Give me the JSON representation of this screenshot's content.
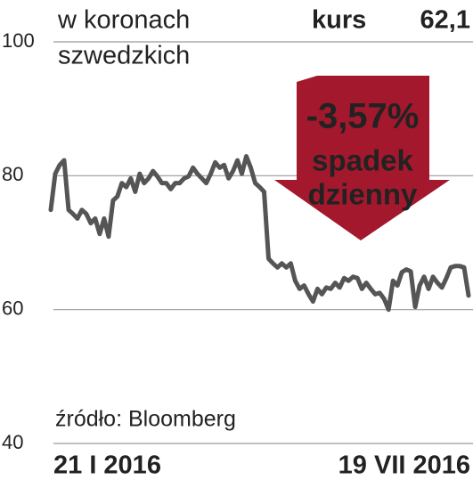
{
  "chart_data": {
    "type": "line",
    "unit_lines": [
      "w koronach",
      "szwedzkich"
    ],
    "price_label": "kurs",
    "price": "62,1",
    "annotation": {
      "change": "-3,57%",
      "lines": [
        "spadek",
        "dzienny"
      ]
    },
    "source": "źródło: Bloomberg",
    "categories": [
      "21 I 2016",
      null,
      null,
      null,
      null,
      null,
      null,
      null,
      null,
      null,
      null,
      null,
      null,
      null,
      null,
      null,
      null,
      null,
      null,
      null,
      null,
      null,
      null,
      null,
      null,
      null,
      null,
      null,
      null,
      null,
      null,
      null,
      null,
      null,
      null,
      null,
      null,
      null,
      null,
      null,
      null,
      null,
      null,
      null,
      null,
      null,
      null,
      null,
      null,
      null,
      null,
      null,
      null,
      null,
      null,
      null,
      null,
      null,
      null,
      null,
      null,
      null,
      null,
      null,
      null,
      null,
      null,
      null,
      null,
      null,
      null,
      null,
      null,
      null,
      null,
      null,
      null,
      null,
      null,
      null,
      null,
      null,
      null,
      null,
      null,
      null,
      null,
      null,
      null,
      null,
      null,
      null,
      null,
      null,
      "19 VII 2016"
    ],
    "values": [
      74.9,
      80.3,
      81.6,
      82.3,
      74.9,
      74.3,
      73.6,
      74.9,
      74.3,
      72.9,
      73.6,
      71.3,
      73.6,
      70.9,
      76.3,
      76.9,
      78.9,
      78.3,
      79.6,
      77.6,
      80.3,
      78.9,
      79.6,
      80.7,
      79.9,
      78.9,
      78.9,
      78.0,
      78.9,
      78.9,
      79.6,
      79.9,
      81.2,
      80.3,
      79.6,
      78.9,
      80.3,
      82.0,
      81.2,
      81.6,
      79.6,
      80.7,
      82.3,
      80.3,
      82.9,
      81.2,
      78.9,
      78.3,
      77.6,
      67.6,
      66.9,
      66.3,
      66.9,
      66.3,
      66.9,
      64.3,
      63.1,
      63.6,
      62.3,
      61.2,
      63.1,
      62.3,
      63.3,
      63.1,
      64.0,
      63.3,
      64.7,
      64.3,
      64.9,
      64.7,
      63.1,
      64.0,
      63.1,
      62.3,
      62.5,
      61.6,
      60.0,
      64.3,
      63.6,
      65.6,
      66.0,
      65.7,
      60.4,
      63.6,
      64.9,
      63.1,
      64.9,
      64.0,
      63.3,
      64.7,
      66.3,
      66.5,
      66.5,
      66.3,
      62.1
    ],
    "color": "#555555",
    "annotation_color": "#a3182c",
    "ylim": [
      40,
      100
    ],
    "yticks": [
      40,
      60,
      80,
      100
    ],
    "grid": true
  }
}
